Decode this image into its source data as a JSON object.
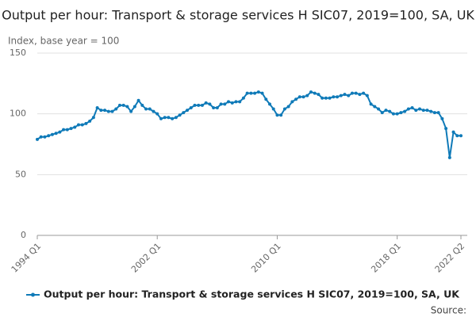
{
  "chart_data": {
    "type": "line",
    "title": "Output per hour: Transport & storage services H SIC07, 2019=100, SA, UK",
    "y_label": "Index, base year = 100",
    "source": "Source:",
    "categories": [
      "1994 Q1",
      null,
      null,
      null,
      null,
      null,
      null,
      null,
      null,
      null,
      null,
      null,
      null,
      null,
      null,
      null,
      null,
      null,
      null,
      null,
      null,
      null,
      null,
      null,
      null,
      null,
      null,
      null,
      null,
      null,
      null,
      null,
      "2002 Q1",
      null,
      null,
      null,
      null,
      null,
      null,
      null,
      null,
      null,
      null,
      null,
      null,
      null,
      null,
      null,
      null,
      null,
      null,
      null,
      null,
      null,
      null,
      null,
      null,
      null,
      null,
      null,
      null,
      null,
      null,
      null,
      "2010 Q1",
      null,
      null,
      null,
      null,
      null,
      null,
      null,
      null,
      null,
      null,
      null,
      null,
      null,
      null,
      null,
      null,
      null,
      null,
      null,
      null,
      null,
      null,
      null,
      null,
      null,
      null,
      null,
      null,
      null,
      null,
      null,
      "2018 Q1",
      null,
      null,
      null,
      null,
      null,
      null,
      null,
      null,
      null,
      null,
      null,
      null,
      null,
      null,
      null,
      null,
      "2022 Q2"
    ],
    "series": [
      {
        "name": "Output per hour: Transport & storage services H SIC07, 2019=100, SA, UK",
        "color": "#0f7ab8",
        "values": [
          79,
          81,
          81,
          82,
          83,
          84,
          85,
          87,
          87,
          88,
          89,
          91,
          91,
          92,
          94,
          97,
          105,
          103,
          103,
          102,
          102,
          104,
          107,
          107,
          106,
          102,
          106,
          111,
          107,
          104,
          104,
          102,
          100,
          96,
          97,
          97,
          96,
          97,
          99,
          101,
          103,
          105,
          107,
          107,
          107,
          109,
          108,
          105,
          105,
          108,
          108,
          110,
          109,
          110,
          110,
          113,
          117,
          117,
          117,
          118,
          117,
          112,
          108,
          104,
          99,
          99,
          104,
          106,
          110,
          112,
          114,
          114,
          115,
          118,
          117,
          116,
          113,
          113,
          113,
          114,
          114,
          115,
          116,
          115,
          117,
          117,
          116,
          117,
          115,
          108,
          106,
          104,
          101,
          103,
          102,
          100,
          100,
          101,
          102,
          104,
          105,
          103,
          104,
          103,
          103,
          102,
          101,
          101,
          96,
          88,
          64,
          85,
          82,
          82
        ]
      }
    ],
    "ylim": [
      0,
      150
    ],
    "yticks": [
      0,
      50,
      100,
      150
    ],
    "grid": true
  }
}
